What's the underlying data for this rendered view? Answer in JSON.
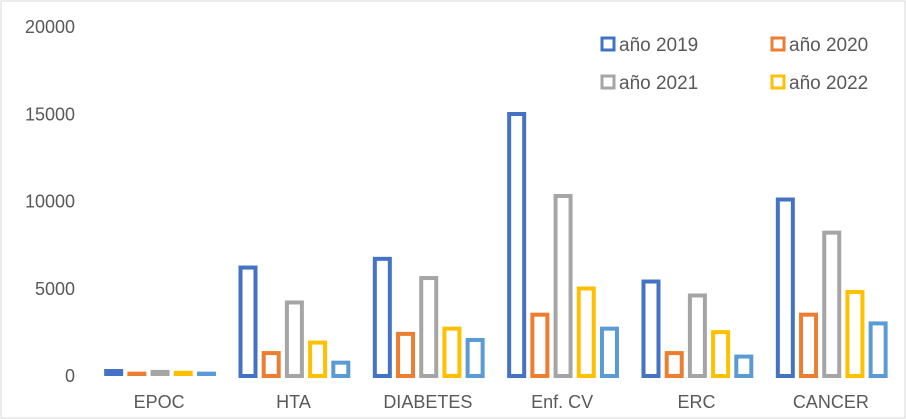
{
  "chart_data": {
    "type": "bar",
    "categories": [
      "EPOC",
      "HTA",
      "DIABETES",
      "Enf. CV",
      "ERC",
      "CANCER"
    ],
    "series": [
      {
        "name": "año 2019",
        "color": "#4472C4",
        "values": [
          400,
          6300,
          6800,
          15100,
          5500,
          10200
        ]
      },
      {
        "name": "año 2020",
        "color": "#ED7D31",
        "values": [
          250,
          1400,
          2500,
          3600,
          1400,
          3600
        ]
      },
      {
        "name": "año 2021",
        "color": "#A5A5A5",
        "values": [
          350,
          4300,
          5700,
          10400,
          4700,
          8300
        ]
      },
      {
        "name": "año 2022",
        "color": "#FFC000",
        "values": [
          300,
          2000,
          2800,
          5100,
          2600,
          4900
        ]
      },
      {
        "color": "#5B9BD5",
        "values": [
          250,
          850,
          2150,
          2800,
          1200,
          3100
        ]
      }
    ],
    "ylim": [
      0,
      20000
    ],
    "yticks": [
      0,
      5000,
      10000,
      15000,
      20000
    ],
    "grid": false,
    "legend_position": "top-right"
  }
}
